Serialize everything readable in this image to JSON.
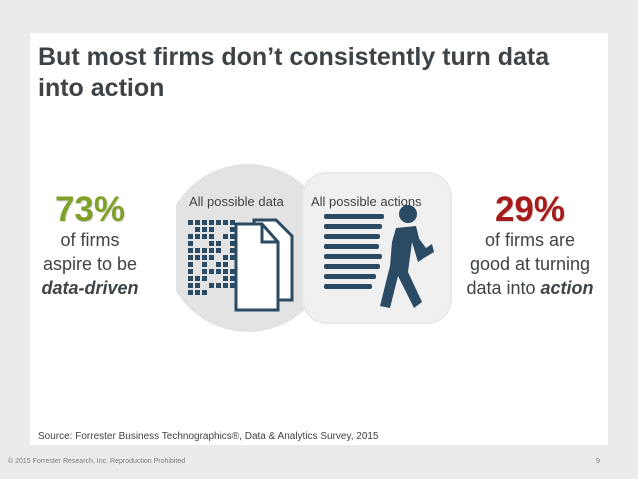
{
  "slide": {
    "title": "But most firms don’t consistently turn data into action",
    "left_stat": {
      "value": "73%",
      "line1": "of firms",
      "line2": "aspire to be",
      "emphasis": "data-driven",
      "color": "#7fa12a"
    },
    "right_stat": {
      "value": "29%",
      "line1": "of firms are",
      "line2": "good at turning",
      "line3_prefix": "data into ",
      "emphasis": "action",
      "color": "#a71b1b"
    },
    "venn": {
      "left_label": "All possible data",
      "right_label": "All possible actions",
      "left_icon": "document-data-icon",
      "right_icon": "running-person-icon",
      "circle_color": "#e3e3e3",
      "icon_color": "#2b4a63"
    },
    "source": "Source: Forrester Business Technographics®, Data & Analytics Survey, 2015",
    "footer": "© 2015 Forrester Research, Inc. Reproduction Prohibited",
    "page_number": "9"
  }
}
